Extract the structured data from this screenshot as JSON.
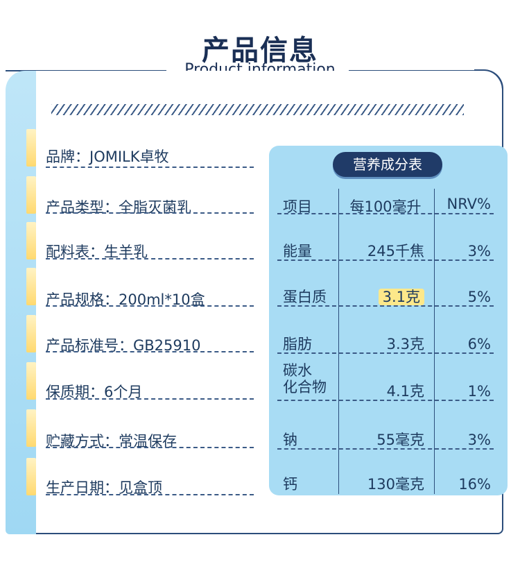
{
  "header": {
    "title": "产品信息",
    "subtitle": "Product information"
  },
  "info": [
    {
      "label": "品牌：JOMILK卓牧"
    },
    {
      "label": "产品类型：全脂灭菌乳"
    },
    {
      "label": "配料表：生羊乳"
    },
    {
      "label": "产品规格：200ml*10盒"
    },
    {
      "label": "产品标准号：GB25910"
    },
    {
      "label": "保质期：6个月"
    },
    {
      "label": "贮藏方式：常温保存"
    },
    {
      "label": "生产日期：见盒顶"
    }
  ],
  "nutrition": {
    "title": "营养成分表",
    "headers": {
      "item": "项目",
      "per": "每100毫升",
      "nrv": "NRV%"
    },
    "rows": [
      {
        "name": "能量",
        "value": "245千焦",
        "nrv": "3%"
      },
      {
        "name": "蛋白质",
        "value": "3.1克",
        "nrv": "5%"
      },
      {
        "name": "脂肪",
        "value": "3.3克",
        "nrv": "6%"
      },
      {
        "name_line1": "碳水",
        "name_line2": "化合物",
        "value": "4.1克",
        "nrv": "1%"
      },
      {
        "name": "钠",
        "value": "55毫克",
        "nrv": "3%"
      },
      {
        "name": "钙",
        "value": "130毫克",
        "nrv": "16%"
      }
    ]
  }
}
